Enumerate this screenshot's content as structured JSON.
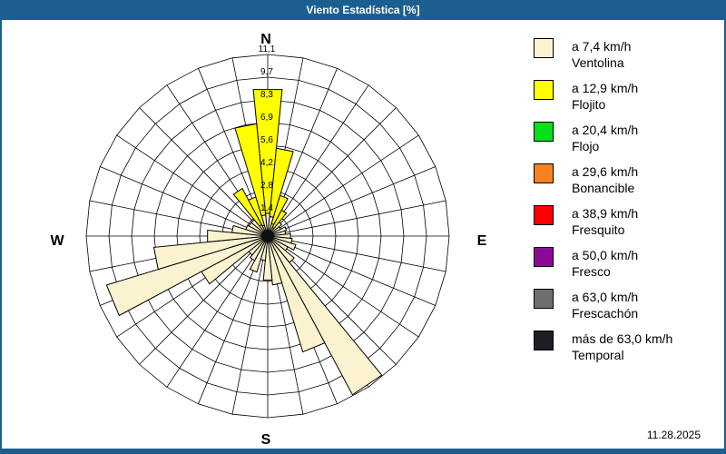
{
  "window": {
    "title": "Viento Estadística [%]",
    "date": "11.28.2025"
  },
  "chart_data": {
    "type": "windrose-stacked-polar-bar",
    "title": "Viento Estadística [%]",
    "units": "%",
    "sectors": 32,
    "sector_width_deg": 11.25,
    "radial_max": 11.1,
    "ring_values": [
      1.4,
      2.8,
      4.2,
      5.6,
      6.9,
      8.3,
      9.7,
      11.1
    ],
    "ring_labels": [
      "1,4",
      "2,8",
      "4,2",
      "5,6",
      "6,9",
      "8,3",
      "9,7",
      "11,1"
    ],
    "cardinals": {
      "n": "N",
      "e": "E",
      "s": "S",
      "w": "W"
    },
    "grid_color": "#000000",
    "outline_color": "#000000",
    "center_dot_color": "#111111",
    "categories": [
      "N",
      "NbE",
      "NNE",
      "NEbN",
      "NE",
      "NEbE",
      "ENE",
      "EbN",
      "E",
      "EbS",
      "ESE",
      "SEbE",
      "SE",
      "SEbS",
      "SSE",
      "SbE",
      "S",
      "SbW",
      "SSW",
      "SWbS",
      "SW",
      "SWbW",
      "WSW",
      "WbS",
      "W",
      "WbN",
      "WNW",
      "NWbW",
      "NW",
      "NWbN",
      "NNW",
      "NbW"
    ],
    "series": [
      {
        "name": "Ventolina",
        "color": "#FBF3CF",
        "values": [
          1.4,
          1.2,
          0.8,
          0.6,
          1.1,
          0.9,
          1.2,
          1.1,
          1.4,
          1.5,
          1.8,
          1.4,
          2.1,
          11.0,
          7.4,
          3.0,
          2.7,
          1.5,
          2.3,
          1.7,
          1.5,
          4.6,
          10.3,
          7.0,
          3.7,
          2.2,
          1.4,
          1.3,
          1.3,
          0.8,
          0.7,
          1.3
        ]
      },
      {
        "name": "Flojito",
        "color": "#FFFF00",
        "values": [
          7.6,
          4.2,
          1.8,
          1.2,
          0,
          0,
          0,
          0,
          0,
          0,
          0,
          0,
          0,
          0,
          0,
          0,
          0,
          0,
          0,
          0,
          0,
          0,
          0,
          0,
          0,
          0,
          0,
          0,
          0,
          2.5,
          1.8,
          5.6
        ]
      },
      {
        "name": "Flojo",
        "color": "#00E01C",
        "values": [
          0,
          0,
          0,
          0,
          0,
          0,
          0,
          0,
          0,
          0,
          0,
          0,
          0,
          0,
          0,
          0,
          0,
          0,
          0,
          0,
          0,
          0,
          0,
          0,
          0,
          0,
          0,
          0,
          0,
          0,
          0,
          0
        ]
      },
      {
        "name": "Bonancible",
        "color": "#F58220",
        "values": [
          0,
          0,
          0,
          0,
          0,
          0,
          0,
          0,
          0,
          0,
          0,
          0,
          0,
          0,
          0,
          0,
          0,
          0,
          0,
          0,
          0,
          0,
          0,
          0,
          0,
          0,
          0,
          0,
          0,
          0,
          0,
          0
        ]
      },
      {
        "name": "Fresquito",
        "color": "#FF0000",
        "values": [
          0,
          0,
          0,
          0,
          0,
          0,
          0,
          0,
          0,
          0,
          0,
          0,
          0,
          0,
          0,
          0,
          0,
          0,
          0,
          0,
          0,
          0,
          0,
          0,
          0,
          0,
          0,
          0,
          0,
          0,
          0,
          0
        ]
      },
      {
        "name": "Fresco",
        "color": "#8C0B96",
        "values": [
          0,
          0,
          0,
          0,
          0,
          0,
          0,
          0,
          0,
          0,
          0,
          0,
          0,
          0,
          0,
          0,
          0,
          0,
          0,
          0,
          0,
          0,
          0,
          0,
          0,
          0,
          0,
          0,
          0,
          0,
          0,
          0
        ]
      },
      {
        "name": "Frescachón",
        "color": "#6F6F6F",
        "values": [
          0,
          0,
          0,
          0,
          0,
          0,
          0,
          0,
          0,
          0,
          0,
          0,
          0,
          0,
          0,
          0,
          0,
          0,
          0,
          0,
          0,
          0,
          0,
          0,
          0,
          0,
          0,
          0,
          0,
          0,
          0,
          0
        ]
      },
      {
        "name": "Temporal",
        "color": "#1F1F23",
        "values": [
          0,
          0,
          0,
          0,
          0,
          0,
          0,
          0,
          0,
          0,
          0,
          0,
          0,
          0,
          0,
          0,
          0,
          0,
          0,
          0,
          0,
          0,
          0,
          0,
          0,
          0,
          0,
          0,
          0,
          0,
          0,
          0
        ]
      }
    ],
    "legend_position": "right",
    "grid": true
  },
  "legend": {
    "items": [
      {
        "speed": "a 7,4 km/h",
        "name": "Ventolina",
        "color": "#FBF3CF"
      },
      {
        "speed": "a 12,9 km/h",
        "name": "Flojito",
        "color": "#FFFF00"
      },
      {
        "speed": "a 20,4 km/h",
        "name": "Flojo",
        "color": "#00E01C"
      },
      {
        "speed": "a 29,6 km/h",
        "name": "Bonancible",
        "color": "#F58220"
      },
      {
        "speed": "a 38,9 km/h",
        "name": "Fresquito",
        "color": "#FF0000"
      },
      {
        "speed": "a 50,0 km/h",
        "name": "Fresco",
        "color": "#8C0B96"
      },
      {
        "speed": "a 63,0 km/h",
        "name": "Frescachón",
        "color": "#6F6F6F"
      },
      {
        "speed": "más de 63,0 km/h",
        "name": "Temporal",
        "color": "#1F1F23"
      }
    ]
  }
}
